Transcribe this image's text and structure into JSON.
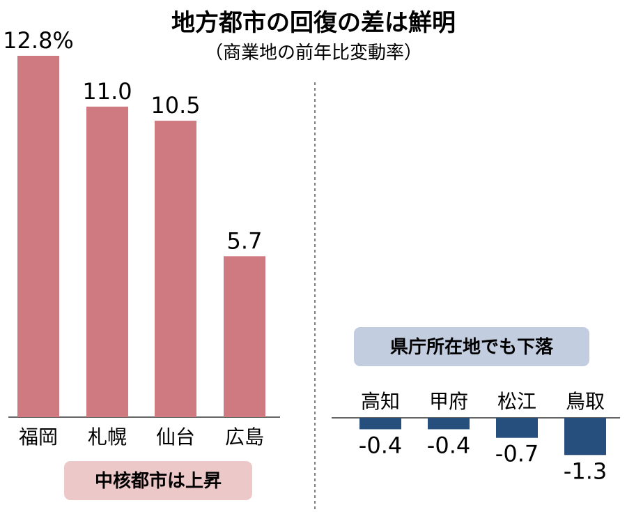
{
  "chart_data": {
    "title": "地方都市の回復の差は鮮明",
    "subtitle": "（商業地の前年比変動率）",
    "type": "bar",
    "panels": [
      {
        "note": "中核都市は上昇",
        "color": "#cf7a80",
        "note_color": "#ecc9c8",
        "categories": [
          "福岡",
          "札幌",
          "仙台",
          "広島"
        ],
        "values": [
          12.8,
          11.0,
          10.5,
          5.7
        ],
        "labels": [
          "12.8%",
          "11.0",
          "10.5",
          "5.7"
        ]
      },
      {
        "note": "県庁所在地でも下落",
        "color": "#264f7e",
        "note_color": "#c3cde0",
        "categories": [
          "高知",
          "甲府",
          "松江",
          "鳥取"
        ],
        "values": [
          -0.4,
          -0.4,
          -0.7,
          -1.3
        ],
        "labels": [
          "-0.4",
          "-0.4",
          "-0.7",
          "-1.3"
        ]
      }
    ],
    "grid": false,
    "legend": "none"
  }
}
